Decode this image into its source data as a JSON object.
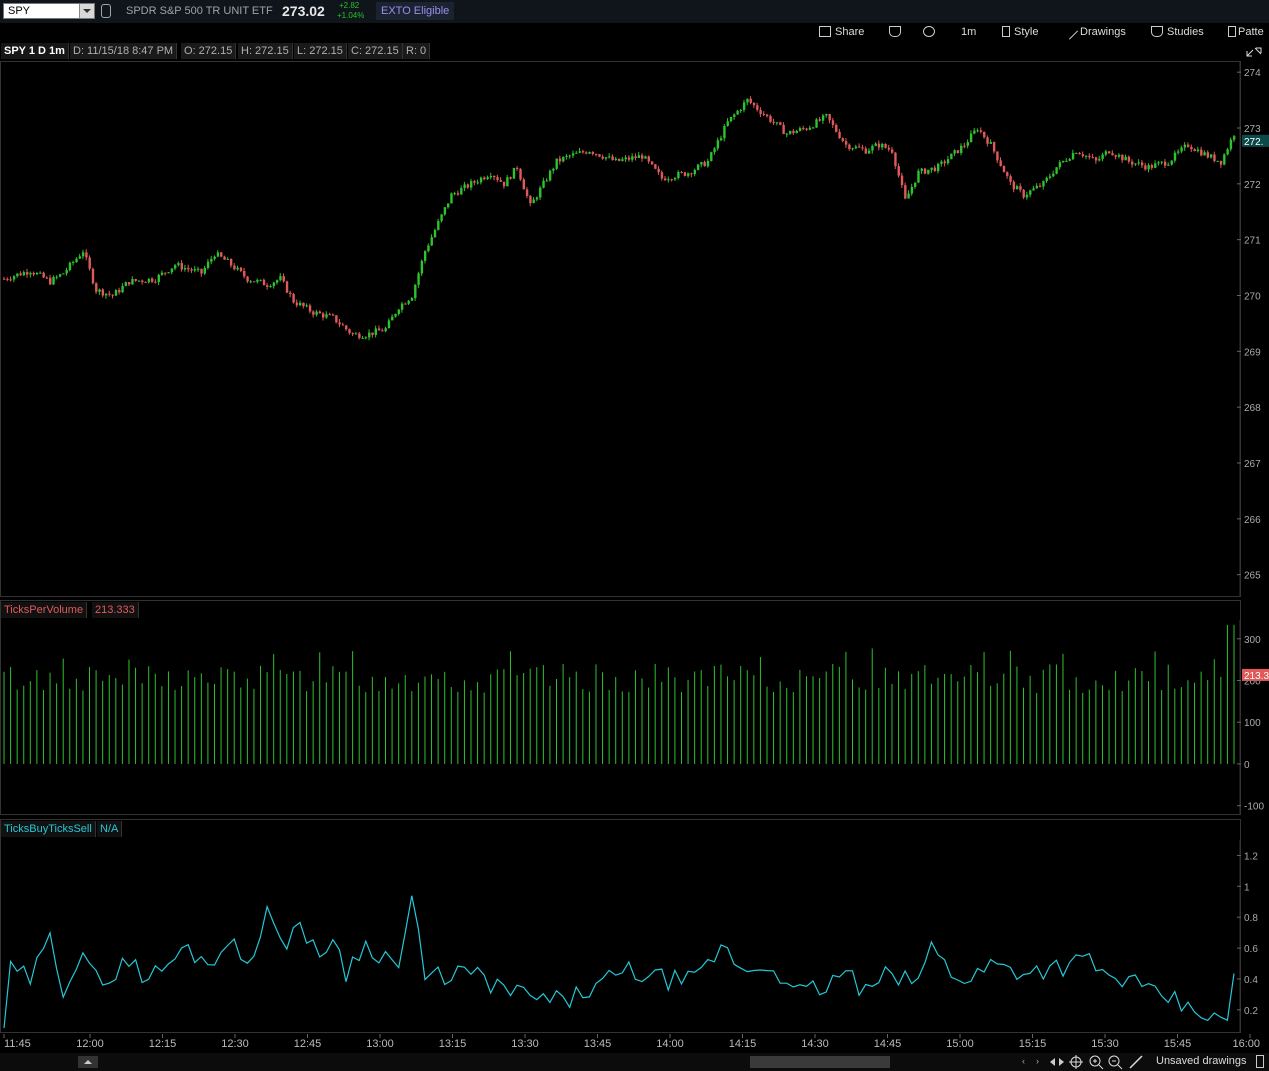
{
  "header": {
    "symbol": "SPY",
    "description": "SPDR S&P 500 TR UNIT ETF",
    "last": "273.02",
    "change": "+2.82",
    "change_pct": "+1.04%",
    "badge": "EXTO Eligible"
  },
  "toolbar": {
    "share": "Share",
    "timeframe": "1m",
    "style": "Style",
    "drawings": "Drawings",
    "studies": "Studies",
    "patterns": "Patte"
  },
  "info": {
    "title": "SPY 1 D 1m",
    "date": "D: 11/15/18 8:47 PM",
    "open": "O: 272.15",
    "high": "H: 272.15",
    "low": "L: 272.15",
    "close": "C: 272.15",
    "range": "R: 0"
  },
  "studies": {
    "tpv_name": "TicksPerVolume",
    "tpv_value": "213.333",
    "tbs_name": "TicksBuyTicksSell",
    "tbs_value": "N/A",
    "tpv_price_tag": "213.3",
    "price_tag": "272."
  },
  "footer": {
    "unsaved": "Unsaved drawings"
  },
  "colors": {
    "up": "#2ec22e",
    "down": "#e05a5a",
    "tpv": "#2ec22e",
    "tbs": "#24c8d8"
  },
  "chart_data": [
    {
      "type": "candlestick",
      "name": "SPY",
      "ylim": [
        264.6,
        274.2
      ],
      "y_ticks": [
        "274",
        "273",
        "272",
        "271",
        "270",
        "269",
        "268",
        "267",
        "266",
        "265"
      ],
      "x_ticks": [
        "11:45",
        "12:00",
        "12:15",
        "12:30",
        "12:45",
        "13:00",
        "13:15",
        "13:30",
        "13:45",
        "14:00",
        "14:15",
        "14:30",
        "14:45",
        "15:00",
        "15:15",
        "15:30",
        "15:45",
        "16:00"
      ],
      "x_range": [
        "11:44",
        "16:00"
      ],
      "anchors": [
        [
          0,
          270.3
        ],
        [
          8,
          270.45
        ],
        [
          14,
          270.25
        ],
        [
          18,
          270.4
        ],
        [
          24,
          270.8
        ],
        [
          28,
          270.1
        ],
        [
          33,
          270.0
        ],
        [
          38,
          270.25
        ],
        [
          46,
          270.3
        ],
        [
          52,
          270.55
        ],
        [
          60,
          270.4
        ],
        [
          64,
          270.75
        ],
        [
          68,
          270.6
        ],
        [
          74,
          270.3
        ],
        [
          80,
          270.2
        ],
        [
          84,
          270.3
        ],
        [
          88,
          269.9
        ],
        [
          94,
          269.7
        ],
        [
          100,
          269.6
        ],
        [
          106,
          269.3
        ],
        [
          110,
          269.3
        ],
        [
          116,
          269.4
        ],
        [
          120,
          269.8
        ],
        [
          124,
          270.0
        ],
        [
          128,
          270.8
        ],
        [
          132,
          271.3
        ],
        [
          136,
          271.8
        ],
        [
          142,
          272.0
        ],
        [
          148,
          272.2
        ],
        [
          152,
          272.0
        ],
        [
          156,
          272.3
        ],
        [
          160,
          271.6
        ],
        [
          164,
          272.0
        ],
        [
          168,
          272.4
        ],
        [
          172,
          272.5
        ],
        [
          178,
          272.6
        ],
        [
          186,
          272.4
        ],
        [
          194,
          272.5
        ],
        [
          200,
          272.1
        ],
        [
          208,
          272.2
        ],
        [
          214,
          272.4
        ],
        [
          220,
          273.1
        ],
        [
          226,
          273.5
        ],
        [
          232,
          273.2
        ],
        [
          238,
          272.9
        ],
        [
          244,
          273.0
        ],
        [
          250,
          273.2
        ],
        [
          256,
          272.7
        ],
        [
          262,
          272.6
        ],
        [
          266,
          272.7
        ],
        [
          270,
          272.6
        ],
        [
          274,
          271.7
        ],
        [
          278,
          272.2
        ],
        [
          284,
          272.3
        ],
        [
          292,
          272.7
        ],
        [
          296,
          273.0
        ],
        [
          300,
          272.7
        ],
        [
          306,
          272.0
        ],
        [
          310,
          271.8
        ],
        [
          316,
          272.0
        ],
        [
          320,
          272.3
        ],
        [
          326,
          272.6
        ],
        [
          332,
          272.4
        ],
        [
          336,
          272.6
        ],
        [
          342,
          272.4
        ],
        [
          348,
          272.3
        ],
        [
          354,
          272.4
        ],
        [
          360,
          272.7
        ],
        [
          366,
          272.5
        ],
        [
          370,
          272.4
        ],
        [
          374,
          272.9
        ]
      ],
      "summary": {
        "open": 270.3,
        "high": 273.6,
        "low": 269.1,
        "last": 273.02
      }
    },
    {
      "type": "bar",
      "name": "TicksPerVolume",
      "ylim": [
        -120,
        345
      ],
      "y_ticks": [
        "300",
        "200",
        "100",
        "0",
        "-100"
      ],
      "last": 213.333,
      "typical": [
        170,
        240
      ]
    },
    {
      "type": "line",
      "name": "TicksBuyTicksSell",
      "ylim": [
        0.05,
        1.3
      ],
      "y_ticks": [
        "1.2",
        "1",
        "0.8",
        "0.6",
        "0.4",
        "0.2"
      ],
      "anchors": [
        [
          0,
          0.1
        ],
        [
          2,
          0.45
        ],
        [
          8,
          0.4
        ],
        [
          14,
          0.65
        ],
        [
          18,
          0.35
        ],
        [
          24,
          0.6
        ],
        [
          30,
          0.3
        ],
        [
          36,
          0.55
        ],
        [
          44,
          0.4
        ],
        [
          50,
          0.5
        ],
        [
          56,
          0.6
        ],
        [
          62,
          0.5
        ],
        [
          68,
          0.65
        ],
        [
          74,
          0.5
        ],
        [
          80,
          0.85
        ],
        [
          84,
          0.6
        ],
        [
          90,
          0.78
        ],
        [
          96,
          0.5
        ],
        [
          100,
          0.7
        ],
        [
          104,
          0.45
        ],
        [
          110,
          0.62
        ],
        [
          116,
          0.55
        ],
        [
          120,
          0.48
        ],
        [
          124,
          0.92
        ],
        [
          128,
          0.4
        ],
        [
          140,
          0.45
        ],
        [
          150,
          0.35
        ],
        [
          160,
          0.28
        ],
        [
          170,
          0.25
        ],
        [
          180,
          0.35
        ],
        [
          190,
          0.45
        ],
        [
          200,
          0.4
        ],
        [
          210,
          0.38
        ],
        [
          218,
          0.6
        ],
        [
          226,
          0.45
        ],
        [
          234,
          0.5
        ],
        [
          240,
          0.3
        ],
        [
          250,
          0.35
        ],
        [
          256,
          0.45
        ],
        [
          262,
          0.3
        ],
        [
          270,
          0.45
        ],
        [
          276,
          0.35
        ],
        [
          282,
          0.6
        ],
        [
          288,
          0.45
        ],
        [
          294,
          0.4
        ],
        [
          300,
          0.5
        ],
        [
          310,
          0.45
        ],
        [
          320,
          0.48
        ],
        [
          330,
          0.52
        ],
        [
          336,
          0.4
        ],
        [
          342,
          0.4
        ],
        [
          348,
          0.3
        ],
        [
          354,
          0.28
        ],
        [
          360,
          0.2
        ],
        [
          366,
          0.18
        ],
        [
          370,
          0.1
        ],
        [
          372,
          0.12
        ],
        [
          374,
          0.45
        ]
      ]
    }
  ]
}
